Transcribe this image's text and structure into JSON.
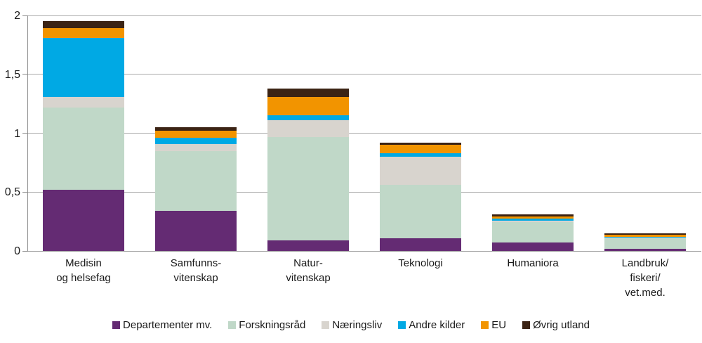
{
  "chart_data": {
    "type": "bar",
    "stacked": true,
    "title": "",
    "xlabel": "",
    "ylabel": "",
    "ylim": [
      0,
      2
    ],
    "grid": true,
    "legend_position": "bottom",
    "decimal_style": "comma",
    "yticks": [
      {
        "value": 0,
        "label": "0"
      },
      {
        "value": 0.5,
        "label": "0,5"
      },
      {
        "value": 1,
        "label": "1"
      },
      {
        "value": 1.5,
        "label": "1,5"
      },
      {
        "value": 2,
        "label": "2"
      }
    ],
    "categories": [
      {
        "label_lines": [
          "Medisin",
          "og helsefag"
        ]
      },
      {
        "label_lines": [
          "Samfunns-",
          "vitenskap"
        ]
      },
      {
        "label_lines": [
          "Natur-",
          "vitenskap"
        ]
      },
      {
        "label_lines": [
          "Teknologi"
        ]
      },
      {
        "label_lines": [
          "Humaniora"
        ]
      },
      {
        "label_lines": [
          "Landbruk/",
          "fiskeri/",
          "vet.med."
        ]
      }
    ],
    "series": [
      {
        "name": "Departementer mv.",
        "color": "#642B73",
        "values": [
          0.52,
          0.34,
          0.09,
          0.11,
          0.07,
          0.02
        ]
      },
      {
        "name": "Forskningsråd",
        "color": "#C0D8C8",
        "values": [
          0.7,
          0.51,
          0.88,
          0.45,
          0.175,
          0.09
        ]
      },
      {
        "name": "Næringsliv",
        "color": "#D8D4CE",
        "values": [
          0.09,
          0.06,
          0.14,
          0.24,
          0.01,
          0.005
        ]
      },
      {
        "name": "Andre kilder",
        "color": "#00A9E4",
        "values": [
          0.5,
          0.05,
          0.04,
          0.03,
          0.02,
          0.005
        ]
      },
      {
        "name": "EU",
        "color": "#F29400",
        "values": [
          0.08,
          0.06,
          0.16,
          0.07,
          0.015,
          0.02
        ]
      },
      {
        "name": "Øvrig utland",
        "color": "#3B2314",
        "values": [
          0.06,
          0.03,
          0.07,
          0.02,
          0.02,
          0.01
        ]
      }
    ],
    "totals": [
      1.95,
      1.05,
      1.38,
      0.92,
      0.31,
      0.15
    ],
    "axis_colors": {
      "gridline": "#ababab",
      "axis": "#8c8c8c",
      "text": "#1a1a1a"
    }
  }
}
